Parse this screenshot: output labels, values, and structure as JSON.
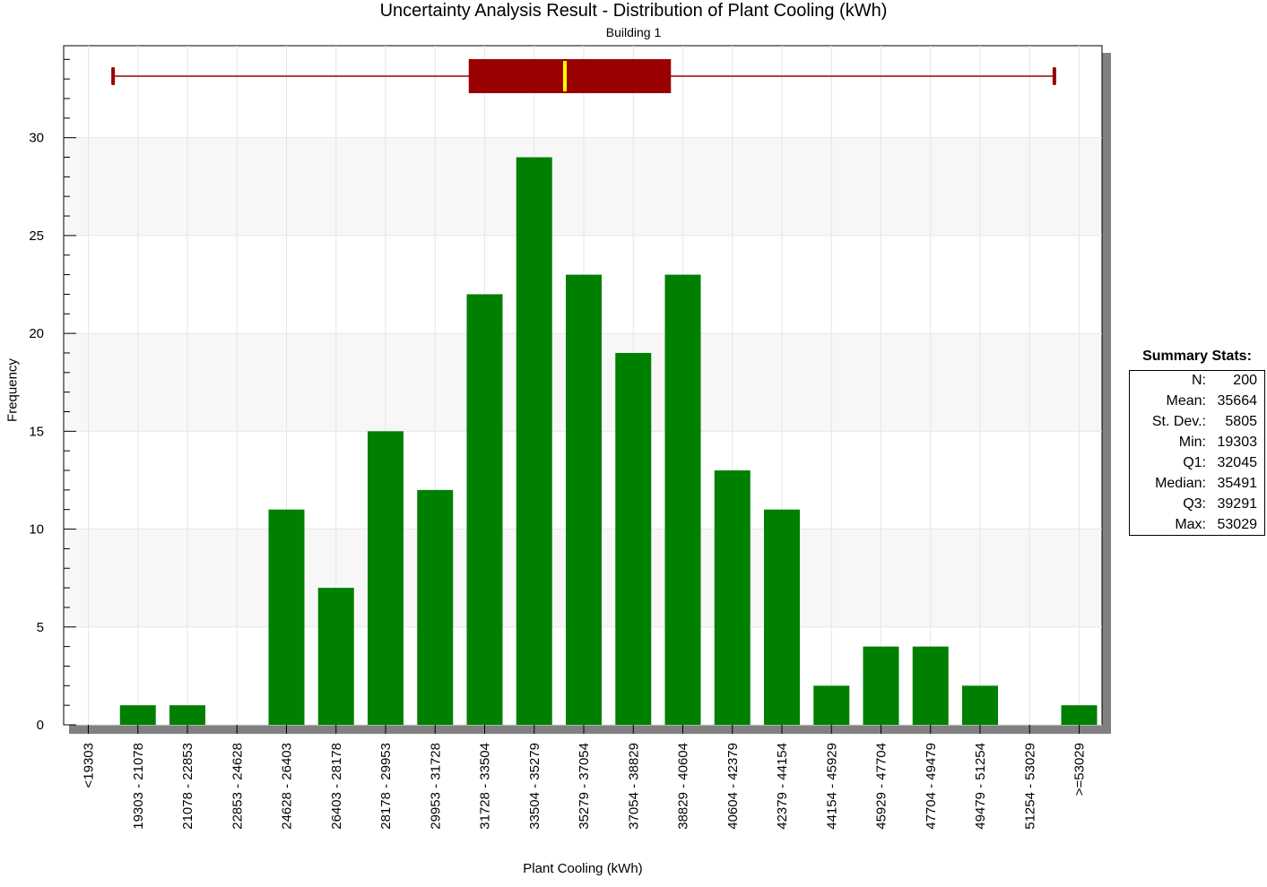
{
  "chart_data": {
    "type": "bar",
    "title": "Uncertainty Analysis Result - Distribution of Plant Cooling (kWh)",
    "subtitle": "Building 1",
    "xlabel": "Plant Cooling (kWh)",
    "ylabel": "Frequency",
    "ylim": [
      0,
      34.7
    ],
    "yticks": [
      0,
      5,
      10,
      15,
      20,
      25,
      30
    ],
    "categories": [
      "<19303",
      "19303 - 21078",
      "21078 - 22853",
      "22853 - 24628",
      "24628 - 26403",
      "26403 - 28178",
      "28178 - 29953",
      "29953 - 31728",
      "31728 - 33504",
      "33504 - 35279",
      "35279 - 37054",
      "37054 - 38829",
      "38829 - 40604",
      "40604 - 42379",
      "42379 - 44154",
      "44154 - 45929",
      "45929 - 47704",
      "47704 - 49479",
      "49479 - 51254",
      "51254 - 53029",
      ">=53029"
    ],
    "values": [
      0,
      1,
      1,
      0,
      11,
      7,
      15,
      12,
      22,
      29,
      23,
      19,
      23,
      13,
      11,
      2,
      4,
      4,
      2,
      0,
      1
    ],
    "boxplot": {
      "min": 19303,
      "q1": 32045,
      "median": 35491,
      "q3": 39291,
      "max": 53029
    },
    "grid": true,
    "colors": {
      "bars": "#008000",
      "box": "#990000",
      "median": "#ffff00",
      "whisker": "#990000",
      "shadow": "#808080",
      "band": "#f7f7f7",
      "grid": "#e6e6e6"
    }
  },
  "summary": {
    "title": "Summary  Stats:",
    "rows": [
      {
        "label": "N:",
        "value": "200"
      },
      {
        "label": "Mean:",
        "value": "35664"
      },
      {
        "label": "St. Dev.:",
        "value": "5805"
      },
      {
        "label": "Min:",
        "value": "19303"
      },
      {
        "label": "Q1:",
        "value": "32045"
      },
      {
        "label": "Median:",
        "value": "35491"
      },
      {
        "label": "Q3:",
        "value": "39291"
      },
      {
        "label": "Max:",
        "value": "53029"
      }
    ]
  }
}
